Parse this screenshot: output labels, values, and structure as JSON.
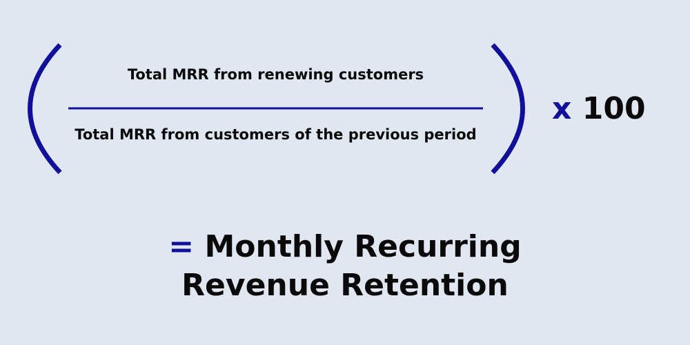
{
  "formula": {
    "numerator": "Total MRR from renewing customers",
    "denominator": "Total MRR from customers of the previous period",
    "multiplier_symbol": "x",
    "multiplier_value": "100",
    "equals_symbol": "=",
    "result_line1": "Monthly Recurring",
    "result_line2": "Revenue Retention"
  },
  "colors": {
    "accent": "#10109a",
    "background": "#e1e7f0",
    "text": "#0a0a0a"
  }
}
